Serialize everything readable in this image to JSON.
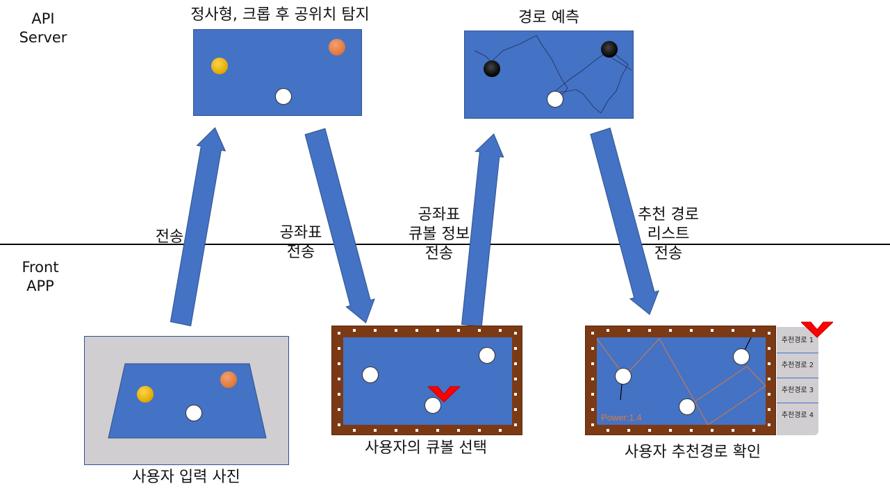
{
  "layers": {
    "api": "API\nServer",
    "front": "Front\nAPP"
  },
  "api": {
    "detect_title": "정사형, 크롭 후 공위치 탐지",
    "predict_title": "경로 예측"
  },
  "front": {
    "photo_caption": "사용자 입력 사진",
    "select_caption": "사용자의 큐볼 선택",
    "confirm_caption": "사용자 추천경로 확인",
    "power_text": "Power:1.4",
    "route_list": [
      "추천경로 1",
      "추천경로 2",
      "추천경로 3",
      "추천경로 4"
    ]
  },
  "arrows": {
    "send": "전송",
    "coords": "공좌표\n전송",
    "coords_cue": "공좌표\n큐볼 정보\n전송",
    "route_list": "추천 경로\n리스트\n전송"
  },
  "colors": {
    "panel": "#4472c4",
    "arrow": "#4472c4",
    "frame": "#7b3a14",
    "marker": "#ff0000"
  }
}
